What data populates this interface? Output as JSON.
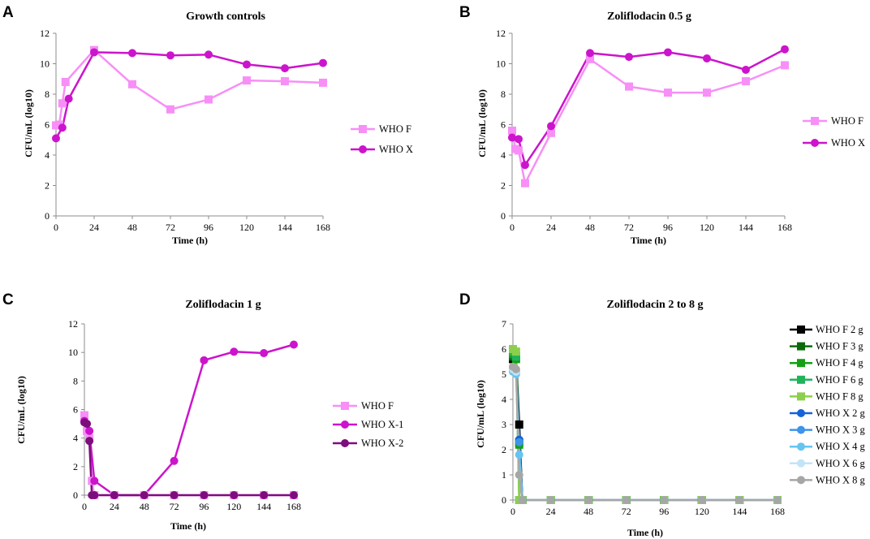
{
  "chart_data": [
    {
      "panel": "A",
      "type": "line",
      "title": "Growth controls",
      "xlabel": "Time (h)",
      "ylabel": "CFU/mL (log10)",
      "xlim": [
        0,
        168
      ],
      "ylim": [
        0,
        12
      ],
      "xticks": [
        0,
        24,
        48,
        72,
        96,
        120,
        144,
        168
      ],
      "yticks": [
        0,
        2,
        4,
        6,
        8,
        10,
        12
      ],
      "legend_position": "right",
      "series": [
        {
          "name": "WHO F",
          "color": "#f78ff7",
          "marker": "square",
          "x": [
            0,
            2,
            4,
            6,
            24,
            48,
            72,
            96,
            120,
            144,
            168
          ],
          "y": [
            5.95,
            6.0,
            7.4,
            8.8,
            10.9,
            8.65,
            7.0,
            7.65,
            8.9,
            8.85,
            8.75
          ]
        },
        {
          "name": "WHO X",
          "color": "#cc14cc",
          "marker": "circle",
          "x": [
            0,
            4,
            8,
            24,
            48,
            72,
            96,
            120,
            144,
            168
          ],
          "y": [
            5.1,
            5.8,
            7.7,
            10.75,
            10.7,
            10.55,
            10.6,
            9.95,
            9.7,
            10.05
          ]
        }
      ]
    },
    {
      "panel": "B",
      "type": "line",
      "title": "Zoliflodacin 0.5 g",
      "xlabel": "Time (h)",
      "ylabel": "CFU/mL (log10)",
      "xlim": [
        0,
        168
      ],
      "ylim": [
        0,
        12
      ],
      "xticks": [
        0,
        24,
        48,
        72,
        96,
        120,
        144,
        168
      ],
      "yticks": [
        0,
        2,
        4,
        6,
        8,
        10,
        12
      ],
      "legend_position": "right",
      "series": [
        {
          "name": "WHO F",
          "color": "#f78ff7",
          "marker": "square",
          "x": [
            0,
            2,
            4,
            8,
            24,
            48,
            72,
            96,
            120,
            144,
            168
          ],
          "y": [
            5.6,
            4.4,
            4.3,
            2.15,
            5.45,
            10.3,
            8.5,
            8.1,
            8.1,
            8.85,
            9.9
          ]
        },
        {
          "name": "WHO X",
          "color": "#cc14cc",
          "marker": "circle",
          "x": [
            0,
            4,
            8,
            24,
            48,
            72,
            96,
            120,
            144,
            168
          ],
          "y": [
            5.15,
            5.05,
            3.35,
            5.9,
            10.7,
            10.45,
            10.75,
            10.35,
            9.6,
            10.95
          ]
        }
      ]
    },
    {
      "panel": "C",
      "type": "line",
      "title": "Zoliflodacin 1 g",
      "xlabel": "Time (h)",
      "ylabel": "CFU/mL (log10)",
      "xlim": [
        0,
        168
      ],
      "ylim": [
        0,
        12
      ],
      "xticks": [
        0,
        24,
        48,
        72,
        96,
        120,
        144,
        168
      ],
      "yticks": [
        0,
        2,
        4,
        6,
        8,
        10,
        12
      ],
      "legend_position": "right",
      "series": [
        {
          "name": "WHO F",
          "color": "#f78ff7",
          "marker": "square",
          "x": [
            0,
            2,
            4,
            6,
            8,
            24,
            48,
            72,
            96,
            120,
            144,
            168
          ],
          "y": [
            5.6,
            4.5,
            4.0,
            1.0,
            0,
            0,
            0,
            0,
            0,
            0,
            0,
            0
          ]
        },
        {
          "name": "WHO X-1",
          "color": "#cc14cc",
          "marker": "circle",
          "x": [
            0,
            4,
            8,
            24,
            48,
            72,
            96,
            120,
            144,
            168
          ],
          "y": [
            5.2,
            4.5,
            1.0,
            0,
            0,
            2.4,
            9.45,
            10.05,
            9.95,
            10.55
          ]
        },
        {
          "name": "WHO X-2",
          "color": "#7d0d7d",
          "marker": "circle",
          "x": [
            0,
            2,
            4,
            6,
            8,
            24,
            48,
            72,
            96,
            120,
            144,
            168
          ],
          "y": [
            5.1,
            5.0,
            3.8,
            0,
            0,
            0,
            0,
            0,
            0,
            0,
            0,
            0
          ]
        }
      ]
    },
    {
      "panel": "D",
      "type": "line",
      "title": "Zoliflodacin 2 to 8 g",
      "xlabel": "Time (h)",
      "ylabel": "CFU/mL (log10)",
      "xlim": [
        0,
        168
      ],
      "ylim": [
        0,
        7
      ],
      "xticks": [
        0,
        24,
        48,
        72,
        96,
        120,
        144,
        168
      ],
      "yticks": [
        0,
        1,
        2,
        3,
        4,
        5,
        6,
        7
      ],
      "legend_position": "right",
      "series": [
        {
          "name": "WHO F 2 g",
          "color": "#000000",
          "marker": "square",
          "x": [
            0,
            2,
            4,
            6,
            24,
            48,
            72,
            96,
            120,
            144,
            168
          ],
          "y": [
            5.6,
            5.7,
            3.0,
            0,
            0,
            0,
            0,
            0,
            0,
            0,
            0
          ]
        },
        {
          "name": "WHO F 3 g",
          "color": "#0b6b0b",
          "marker": "square",
          "x": [
            0,
            2,
            4,
            6,
            24,
            48,
            72,
            96,
            120,
            144,
            168
          ],
          "y": [
            5.7,
            5.65,
            2.3,
            0,
            0,
            0,
            0,
            0,
            0,
            0,
            0
          ]
        },
        {
          "name": "WHO F 4 g",
          "color": "#14a014",
          "marker": "square",
          "x": [
            0,
            2,
            4,
            6,
            24,
            48,
            72,
            96,
            120,
            144,
            168
          ],
          "y": [
            5.8,
            5.6,
            2.2,
            0,
            0,
            0,
            0,
            0,
            0,
            0,
            0
          ]
        },
        {
          "name": "WHO F 6 g",
          "color": "#1fb35a",
          "marker": "square",
          "x": [
            0,
            2,
            4,
            6,
            24,
            48,
            72,
            96,
            120,
            144,
            168
          ],
          "y": [
            5.9,
            5.7,
            0,
            0,
            0,
            0,
            0,
            0,
            0,
            0,
            0
          ]
        },
        {
          "name": "WHO F 8 g",
          "color": "#8ccf4d",
          "marker": "square",
          "x": [
            0,
            2,
            4,
            6,
            24,
            48,
            72,
            96,
            120,
            144,
            168
          ],
          "y": [
            6.0,
            5.9,
            0,
            0,
            0,
            0,
            0,
            0,
            0,
            0,
            0
          ]
        },
        {
          "name": "WHO X 2 g",
          "color": "#1463d9",
          "marker": "circle",
          "x": [
            0,
            2,
            4,
            6,
            24,
            48,
            72,
            96,
            120,
            144,
            168
          ],
          "y": [
            5.2,
            5.1,
            2.4,
            0,
            0,
            0,
            0,
            0,
            0,
            0,
            0
          ]
        },
        {
          "name": "WHO X 3 g",
          "color": "#3d94e8",
          "marker": "circle",
          "x": [
            0,
            2,
            4,
            6,
            24,
            48,
            72,
            96,
            120,
            144,
            168
          ],
          "y": [
            5.15,
            5.1,
            2.3,
            0,
            0,
            0,
            0,
            0,
            0,
            0,
            0
          ]
        },
        {
          "name": "WHO X 4 g",
          "color": "#66c4f2",
          "marker": "circle",
          "x": [
            0,
            2,
            4,
            6,
            24,
            48,
            72,
            96,
            120,
            144,
            168
          ],
          "y": [
            5.1,
            5.0,
            1.8,
            0,
            0,
            0,
            0,
            0,
            0,
            0,
            0
          ]
        },
        {
          "name": "WHO X 6 g",
          "color": "#c2e4f7",
          "marker": "circle",
          "x": [
            0,
            2,
            4,
            6,
            24,
            48,
            72,
            96,
            120,
            144,
            168
          ],
          "y": [
            5.2,
            5.1,
            1.0,
            0,
            0,
            0,
            0,
            0,
            0,
            0,
            0
          ]
        },
        {
          "name": "WHO X 8 g",
          "color": "#a6a6a6",
          "marker": "circle",
          "x": [
            0,
            2,
            4,
            6,
            24,
            48,
            72,
            96,
            120,
            144,
            168
          ],
          "y": [
            5.3,
            5.2,
            1.0,
            0,
            0,
            0,
            0,
            0,
            0,
            0,
            0
          ]
        }
      ]
    }
  ]
}
